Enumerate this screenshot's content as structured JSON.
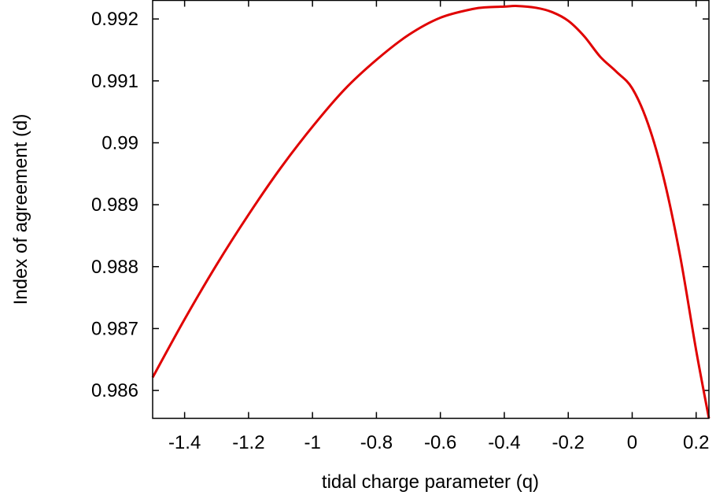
{
  "chart_data": {
    "type": "line",
    "title": "",
    "xlabel": "tidal charge parameter (q)",
    "ylabel": "Index of agreement (d)",
    "xlim": [
      -1.5,
      0.24
    ],
    "ylim": [
      0.98555,
      0.9923
    ],
    "x_ticks": [
      -1.4,
      -1.2,
      -1.0,
      -0.8,
      -0.6,
      -0.4,
      -0.2,
      0.0,
      0.2
    ],
    "x_tick_labels": [
      "-1.4",
      "-1.2",
      "-1",
      "-0.8",
      "-0.6",
      "-0.4",
      "-0.2",
      "0",
      "0.2"
    ],
    "y_ticks": [
      0.986,
      0.987,
      0.988,
      0.989,
      0.99,
      0.991,
      0.992
    ],
    "y_tick_labels": [
      "0.986",
      "0.987",
      "0.988",
      "0.989",
      "0.99",
      "0.991",
      "0.992"
    ],
    "grid": false,
    "legend": "none",
    "series": [
      {
        "color": "#e00000",
        "x": [
          -1.5,
          -1.4,
          -1.3,
          -1.2,
          -1.1,
          -1.0,
          -0.9,
          -0.8,
          -0.7,
          -0.6,
          -0.5,
          -0.45,
          -0.4,
          -0.36,
          -0.3,
          -0.25,
          -0.2,
          -0.15,
          -0.1,
          -0.05,
          0.0,
          0.05,
          0.1,
          0.15,
          0.2,
          0.24
        ],
        "y": [
          0.98621,
          0.98715,
          0.98803,
          0.98884,
          0.98959,
          0.99026,
          0.99086,
          0.99134,
          0.99174,
          0.99202,
          0.99216,
          0.99219,
          0.9922,
          0.99221,
          0.99218,
          0.99211,
          0.99197,
          0.99172,
          0.99139,
          0.99115,
          0.99088,
          0.9903,
          0.9894,
          0.98817,
          0.98665,
          0.98555
        ]
      }
    ]
  }
}
